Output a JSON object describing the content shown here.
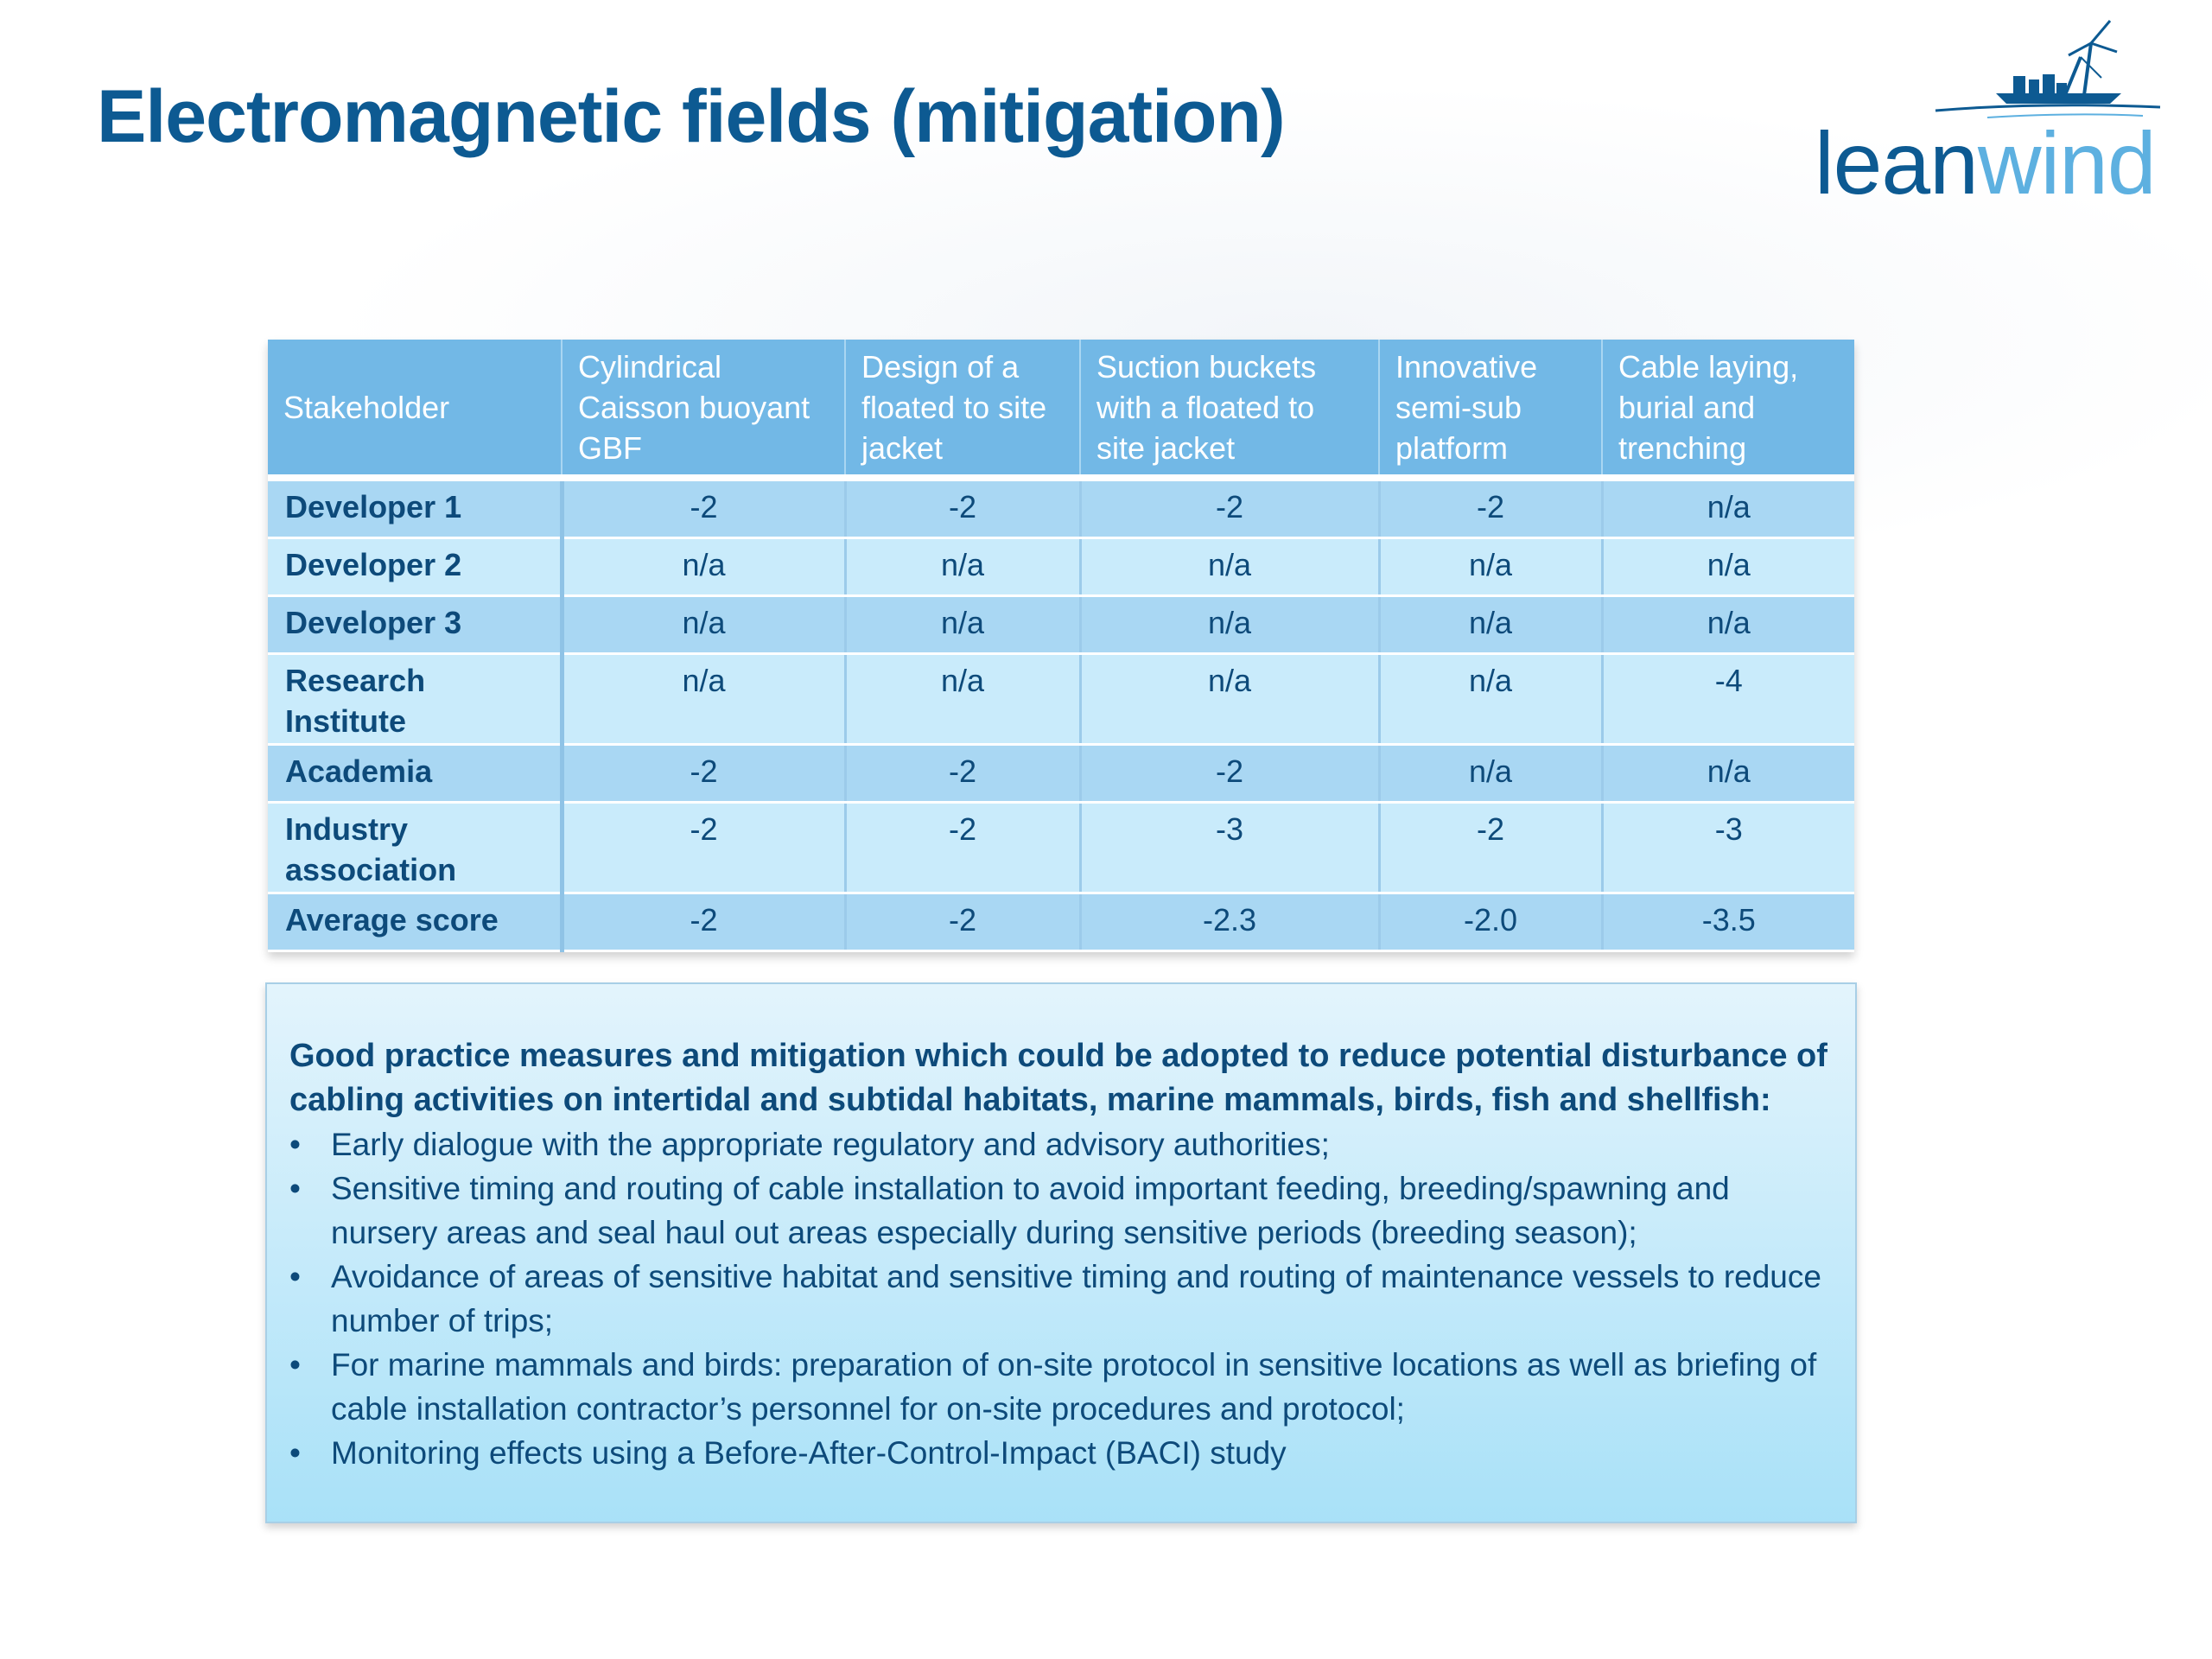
{
  "slide": {
    "title": "Electromagnetic fields (mitigation)"
  },
  "logo": {
    "text_lean": "lean",
    "text_wind": "wind",
    "colors": {
      "lean": "#0d5a92",
      "wind": "#5db0e0"
    },
    "icon": "wind-turbine-vessel-icon"
  },
  "table": {
    "headers": [
      "Stakeholder",
      "Cylindrical Caisson buoyant GBF",
      "Design of a floated to site jacket",
      "Suction buckets with a floated to site jacket",
      "Innovative semi-sub platform",
      "Cable laying, burial and trenching"
    ],
    "rows": [
      {
        "stakeholder": "Developer 1",
        "values": [
          "-2",
          "-2",
          "-2",
          "-2",
          "n/a"
        ]
      },
      {
        "stakeholder": "Developer 2",
        "values": [
          "n/a",
          "n/a",
          "n/a",
          "n/a",
          "n/a"
        ]
      },
      {
        "stakeholder": "Developer 3",
        "values": [
          "n/a",
          "n/a",
          "n/a",
          "n/a",
          "n/a"
        ]
      },
      {
        "stakeholder": "Research Institute",
        "values": [
          "n/a",
          "n/a",
          "n/a",
          "n/a",
          "-4"
        ]
      },
      {
        "stakeholder": "Academia",
        "values": [
          "-2",
          "-2",
          "-2",
          "n/a",
          "n/a"
        ]
      },
      {
        "stakeholder": "Industry association",
        "values": [
          "-2",
          "-2",
          "-3",
          "-2",
          "-3"
        ]
      },
      {
        "stakeholder": "Average score",
        "values": [
          "-2",
          "-2",
          "-2.3",
          "-2.0",
          "-3.5"
        ]
      }
    ],
    "colors": {
      "header": "#72b8e6",
      "row_dark": "#a9d7f3",
      "row_light": "#c9ebfb",
      "text": "#0d4a7a"
    }
  },
  "notes": {
    "lead": "Good practice measures and mitigation which could be adopted to reduce potential disturbance of cabling activities on intertidal and subtidal habitats, marine mammals, birds, fish and shellfish:",
    "bullet_symbol": "•",
    "items": [
      "Early dialogue with the appropriate regulatory and advisory authorities;",
      "Sensitive timing and routing of cable installation to avoid important feeding, breeding/spawning and nursery areas and seal haul out areas especially during sensitive periods (breeding season);",
      "Avoidance of areas of sensitive habitat and sensitive timing and routing of maintenance vessels to reduce number of trips;",
      "For marine mammals and birds: preparation of on-site protocol in sensitive locations as well as briefing of cable installation contractor’s personnel for on-site procedures and protocol;",
      "Monitoring effects using a Before-After-Control-Impact (BACI) study"
    ]
  }
}
